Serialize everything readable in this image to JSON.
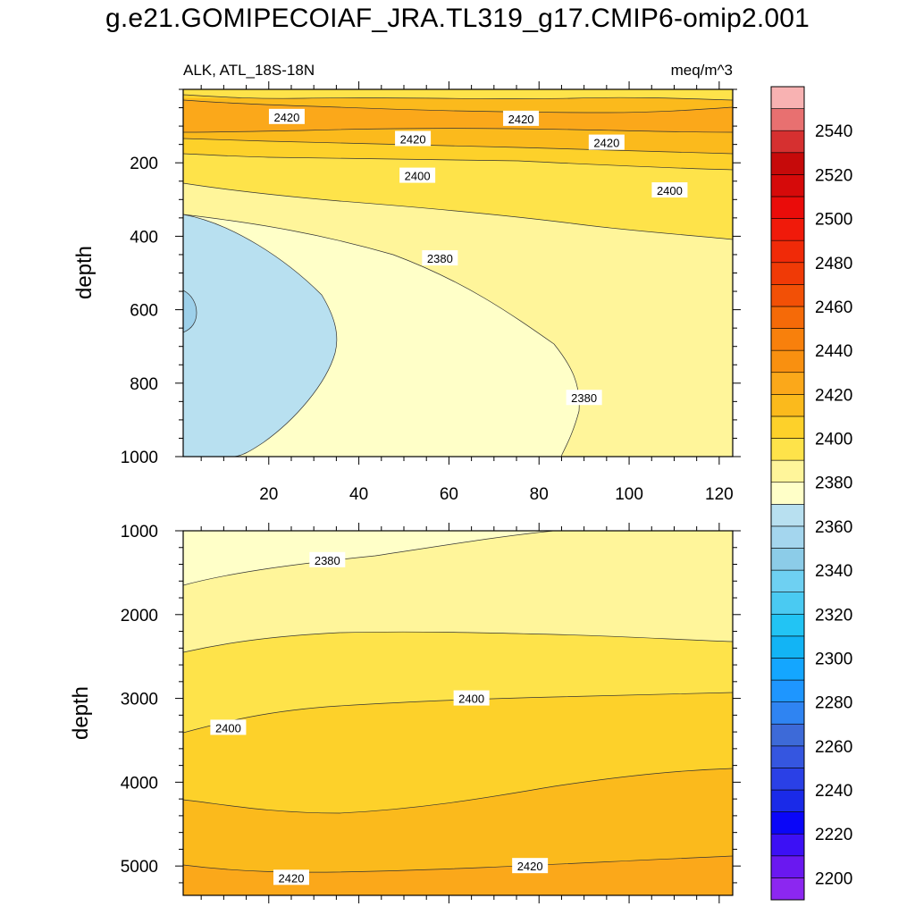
{
  "figure": {
    "title": "g.e21.GOMIPECOIAF_JRA.TL319_g17.CMIP6-omip2.001",
    "left_subtitle": "ALK, ATL_18S-18N",
    "right_subtitle": "meq/m^3"
  },
  "colors": {
    "band_2360_2380": "#b8e0f0",
    "band_2340_2360": "#9dd0ea",
    "band_2380_2390": "#ffffc8",
    "band_2390_2400": "#fff59a",
    "band_2400_2410": "#fee34a",
    "band_2410_2420": "#fdd12a",
    "band_2420_2430": "#fbba1c",
    "band_2430_2440": "#fba81a",
    "contour_line": "#333333"
  },
  "chart_data": [
    {
      "type": "contour",
      "panel": "upper",
      "xlabel": "",
      "ylabel": "depth",
      "xlim": [
        1,
        123
      ],
      "ylim": [
        1000,
        0
      ],
      "xticks": [
        20,
        40,
        60,
        80,
        100,
        120
      ],
      "xtick_labels": [
        "20",
        "40",
        "60",
        "80",
        "100",
        "120"
      ],
      "yticks": [
        200,
        400,
        600,
        800,
        1000
      ],
      "ytick_labels": [
        "200",
        "400",
        "600",
        "800",
        "1000"
      ],
      "contour_labels": [
        {
          "text": "2420",
          "x": 24,
          "depth": 75
        },
        {
          "text": "2420",
          "x": 76,
          "depth": 80
        },
        {
          "text": "2420",
          "x": 52,
          "depth": 135
        },
        {
          "text": "2420",
          "x": 95,
          "depth": 145
        },
        {
          "text": "2400",
          "x": 53,
          "depth": 235
        },
        {
          "text": "2400",
          "x": 109,
          "depth": 275
        },
        {
          "text": "2380",
          "x": 58,
          "depth": 460
        },
        {
          "text": "2380",
          "x": 90,
          "depth": 840
        }
      ]
    },
    {
      "type": "contour",
      "panel": "lower",
      "xlabel": "",
      "ylabel": "depth",
      "xlim": [
        1,
        123
      ],
      "ylim": [
        5350,
        1000
      ],
      "xticks": [
        20,
        40,
        60,
        80,
        100,
        120
      ],
      "yticks": [
        1000,
        2000,
        3000,
        4000,
        5000
      ],
      "ytick_labels": [
        "1000",
        "2000",
        "3000",
        "4000",
        "5000"
      ],
      "contour_labels": [
        {
          "text": "2380",
          "x": 33,
          "depth": 1350
        },
        {
          "text": "2400",
          "x": 65,
          "depth": 3000
        },
        {
          "text": "2400",
          "x": 11,
          "depth": 3350
        },
        {
          "text": "2420",
          "x": 25,
          "depth": 5140
        },
        {
          "text": "2420",
          "x": 78,
          "depth": 5000
        }
      ]
    },
    {
      "type": "colorbar",
      "orientation": "vertical",
      "levels": [
        2200,
        2220,
        2240,
        2260,
        2280,
        2300,
        2320,
        2340,
        2360,
        2380,
        2400,
        2420,
        2440,
        2460,
        2480,
        2500,
        2520,
        2540
      ],
      "tick_labels": [
        "2200",
        "2220",
        "2240",
        "2260",
        "2280",
        "2300",
        "2320",
        "2340",
        "2360",
        "2380",
        "2400",
        "2420",
        "2440",
        "2460",
        "2480",
        "2500",
        "2520",
        "2540"
      ],
      "swatches": [
        "#8c27f0",
        "#6a18f0",
        "#3c10f5",
        "#0a06f8",
        "#1a2ae8",
        "#2a40e6",
        "#3556e0",
        "#3d6ad8",
        "#2f84f2",
        "#1e96ff",
        "#14a6ff",
        "#12b4f5",
        "#22c4f4",
        "#4acaf2",
        "#6ed0f2",
        "#8ccce8",
        "#a4d6ee",
        "#b8e0f0",
        "#ffffc8",
        "#fff59a",
        "#fee34a",
        "#fdd12a",
        "#fbba1c",
        "#fba81a",
        "#f99010",
        "#f8800c",
        "#f56a08",
        "#f25006",
        "#f03a06",
        "#f02a08",
        "#f01a0a",
        "#ea0c0a",
        "#d60a0a",
        "#c60a0a",
        "#d63030",
        "#e87070",
        "#f8b2b2"
      ]
    }
  ]
}
